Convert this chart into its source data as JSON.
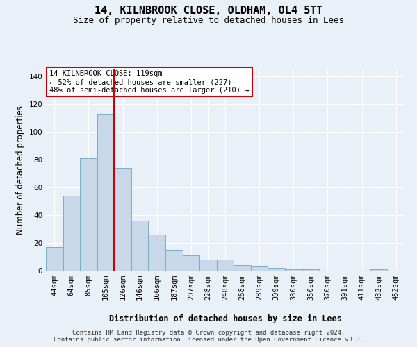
{
  "title": "14, KILNBROOK CLOSE, OLDHAM, OL4 5TT",
  "subtitle": "Size of property relative to detached houses in Lees",
  "xlabel": "Distribution of detached houses by size in Lees",
  "ylabel": "Number of detached properties",
  "categories": [
    "44sqm",
    "64sqm",
    "85sqm",
    "105sqm",
    "126sqm",
    "146sqm",
    "166sqm",
    "187sqm",
    "207sqm",
    "228sqm",
    "248sqm",
    "268sqm",
    "289sqm",
    "309sqm",
    "330sqm",
    "350sqm",
    "370sqm",
    "391sqm",
    "411sqm",
    "432sqm",
    "452sqm"
  ],
  "values": [
    17,
    54,
    81,
    113,
    74,
    36,
    26,
    15,
    11,
    8,
    8,
    4,
    3,
    2,
    1,
    1,
    0,
    0,
    0,
    1,
    0
  ],
  "bar_color": "#c8d8e8",
  "bar_edge_color": "#7aafc8",
  "red_line_x": 3.5,
  "annotation_text": "14 KILNBROOK CLOSE: 119sqm\n← 52% of detached houses are smaller (227)\n48% of semi-detached houses are larger (210) →",
  "annotation_box_color": "#ffffff",
  "annotation_border_color": "#cc0000",
  "ylim": [
    0,
    145
  ],
  "yticks": [
    0,
    20,
    40,
    60,
    80,
    100,
    120,
    140
  ],
  "footer_text": "Contains HM Land Registry data © Crown copyright and database right 2024.\nContains public sector information licensed under the Open Government Licence v3.0.",
  "background_color": "#eaf0f8",
  "grid_color": "#ffffff",
  "title_fontsize": 11,
  "subtitle_fontsize": 9,
  "label_fontsize": 8.5,
  "tick_fontsize": 7.5,
  "footer_fontsize": 6.5,
  "annotation_fontsize": 7.5
}
